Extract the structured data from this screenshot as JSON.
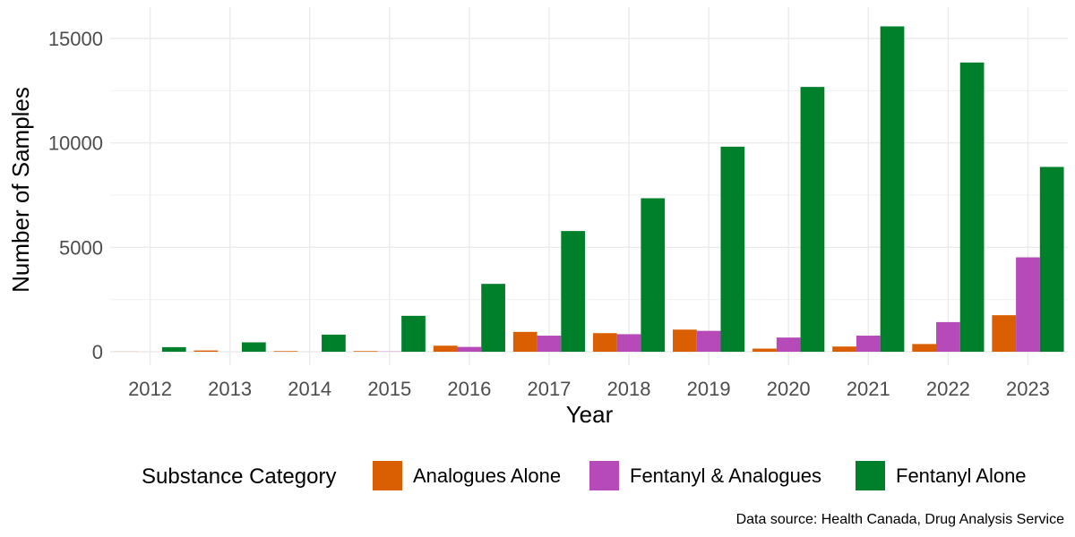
{
  "chart_data": {
    "type": "bar",
    "xlabel": "Year",
    "ylabel": "Number of Samples",
    "caption": "Data source: Health Canada, Drug Analysis Service",
    "legend_title": "Substance Category",
    "legend_position": "bottom",
    "grid": true,
    "ylim": [
      0,
      15700
    ],
    "yticks": [
      0,
      5000,
      10000,
      15000
    ],
    "categories": [
      "2012",
      "2013",
      "2014",
      "2015",
      "2016",
      "2017",
      "2018",
      "2019",
      "2020",
      "2021",
      "2022",
      "2023"
    ],
    "series": [
      {
        "name": "Analogues Alone",
        "color": "#D95F02",
        "values": [
          5,
          60,
          30,
          30,
          290,
          950,
          890,
          1060,
          150,
          250,
          370,
          1750
        ]
      },
      {
        "name": "Fentanyl & Analogues",
        "color": "#B64AB8",
        "values": [
          0,
          0,
          0,
          10,
          230,
          770,
          840,
          1000,
          680,
          770,
          1420,
          4520
        ]
      },
      {
        "name": "Fentanyl Alone",
        "color": "#00802B",
        "values": [
          220,
          450,
          820,
          1720,
          3250,
          5780,
          7350,
          9820,
          12680,
          15580,
          13850,
          8850
        ]
      }
    ]
  }
}
